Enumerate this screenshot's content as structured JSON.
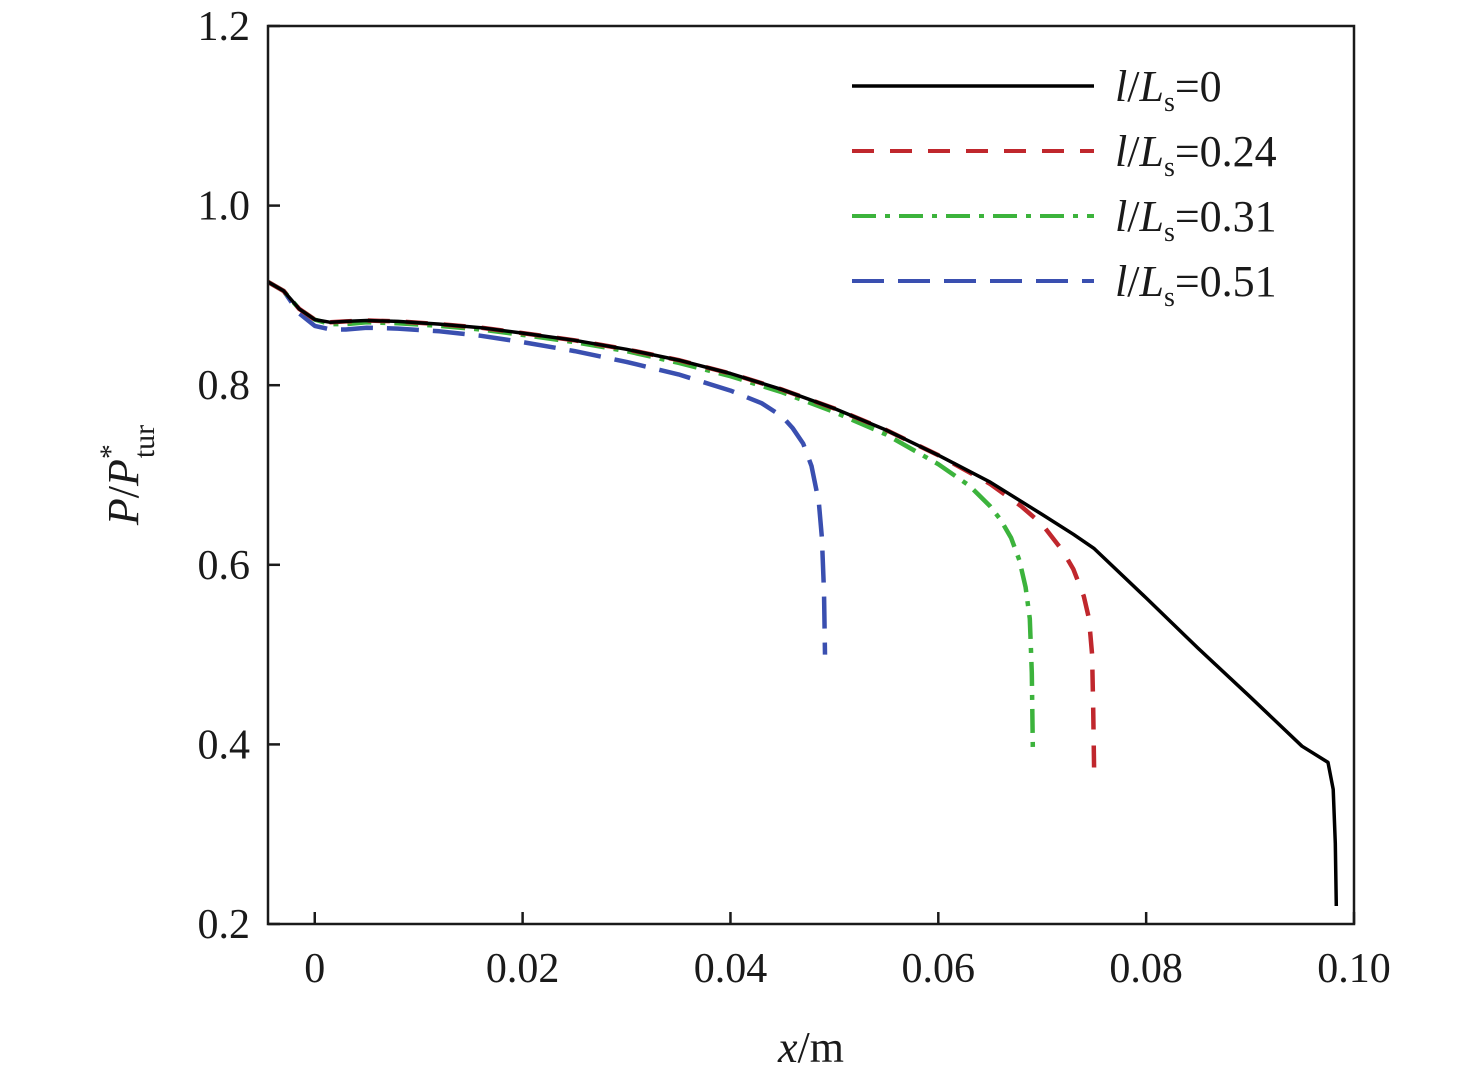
{
  "chart_data": {
    "type": "line",
    "xlabel": {
      "var": "x",
      "unit": "/m"
    },
    "ylabel": {
      "var1": "P",
      "slash": "/",
      "var2": "P",
      "sup": "*",
      "sub": "tur"
    },
    "xlim": [
      -0.0045,
      0.1
    ],
    "ylim": [
      0.2,
      1.2
    ],
    "xticks": [
      0,
      0.02,
      0.04,
      0.06,
      0.08,
      0.1
    ],
    "xtick_labels": [
      "0",
      "0.02",
      "0.04",
      "0.06",
      "0.08",
      "0.10"
    ],
    "yticks": [
      0.2,
      0.4,
      0.6,
      0.8,
      1.0,
      1.2
    ],
    "ytick_labels": [
      "0.2",
      "0.4",
      "0.6",
      "0.8",
      "1.0",
      "1.2"
    ],
    "grid": false,
    "legend_position": "top-right",
    "series": [
      {
        "name": "l/Ls=0",
        "legend": {
          "l": "l",
          "L": "L",
          "sub": "s",
          "eq": "=0"
        },
        "color": "#000000",
        "dash": "solid",
        "x": [
          -0.0045,
          -0.003,
          -0.0015,
          0.0,
          0.0015,
          0.003,
          0.005,
          0.008,
          0.012,
          0.016,
          0.02,
          0.025,
          0.03,
          0.035,
          0.04,
          0.045,
          0.05,
          0.055,
          0.06,
          0.065,
          0.07,
          0.073,
          0.075,
          0.08,
          0.085,
          0.09,
          0.095,
          0.0975,
          0.098,
          0.0982,
          0.0983
        ],
        "y": [
          0.915,
          0.905,
          0.885,
          0.873,
          0.87,
          0.871,
          0.872,
          0.871,
          0.868,
          0.864,
          0.858,
          0.85,
          0.84,
          0.828,
          0.813,
          0.795,
          0.774,
          0.75,
          0.722,
          0.692,
          0.656,
          0.634,
          0.618,
          0.563,
          0.507,
          0.453,
          0.398,
          0.38,
          0.35,
          0.29,
          0.22
        ]
      },
      {
        "name": "l/Ls=0.24",
        "legend": {
          "l": "l",
          "L": "L",
          "sub": "s",
          "eq": "=0.24"
        },
        "color": "#c0272d",
        "dash": "22 16",
        "x": [
          -0.0045,
          -0.003,
          -0.0015,
          0.0,
          0.0015,
          0.003,
          0.005,
          0.008,
          0.012,
          0.016,
          0.02,
          0.025,
          0.03,
          0.035,
          0.04,
          0.045,
          0.05,
          0.055,
          0.06,
          0.065,
          0.068,
          0.07,
          0.072,
          0.073,
          0.074,
          0.0745,
          0.0748,
          0.0749,
          0.075
        ],
        "y": [
          0.915,
          0.905,
          0.885,
          0.873,
          0.87,
          0.871,
          0.872,
          0.871,
          0.868,
          0.864,
          0.858,
          0.85,
          0.84,
          0.828,
          0.813,
          0.795,
          0.774,
          0.75,
          0.722,
          0.69,
          0.665,
          0.645,
          0.615,
          0.595,
          0.565,
          0.54,
          0.5,
          0.44,
          0.365
        ]
      },
      {
        "name": "l/Ls=0.31",
        "legend": {
          "l": "l",
          "L": "L",
          "sub": "s",
          "eq": "=0.31"
        },
        "color": "#3cb33c",
        "dash": "24 9 5 9",
        "x": [
          -0.0045,
          -0.003,
          -0.0015,
          0.0,
          0.0015,
          0.003,
          0.005,
          0.008,
          0.012,
          0.016,
          0.02,
          0.025,
          0.03,
          0.035,
          0.04,
          0.045,
          0.05,
          0.055,
          0.06,
          0.063,
          0.065,
          0.066,
          0.067,
          0.0678,
          0.0684,
          0.0688,
          0.069,
          0.0691
        ],
        "y": [
          0.915,
          0.905,
          0.885,
          0.873,
          0.868,
          0.868,
          0.87,
          0.869,
          0.866,
          0.862,
          0.856,
          0.848,
          0.838,
          0.825,
          0.81,
          0.792,
          0.77,
          0.745,
          0.712,
          0.688,
          0.665,
          0.65,
          0.63,
          0.605,
          0.575,
          0.54,
          0.48,
          0.39
        ]
      },
      {
        "name": "l/Ls=0.51",
        "legend": {
          "l": "l",
          "L": "L",
          "sub": "s",
          "eq": "=0.51"
        },
        "color": "#3a4fb0",
        "dash": "32 14",
        "x": [
          -0.0045,
          -0.003,
          -0.0015,
          0.0,
          0.0015,
          0.003,
          0.005,
          0.008,
          0.012,
          0.016,
          0.02,
          0.025,
          0.03,
          0.035,
          0.04,
          0.043,
          0.045,
          0.046,
          0.047,
          0.0478,
          0.0485,
          0.0488,
          0.049,
          0.0491
        ],
        "y": [
          0.915,
          0.905,
          0.88,
          0.866,
          0.862,
          0.862,
          0.864,
          0.863,
          0.86,
          0.855,
          0.848,
          0.838,
          0.826,
          0.812,
          0.794,
          0.78,
          0.765,
          0.752,
          0.735,
          0.71,
          0.67,
          0.63,
          0.57,
          0.5
        ]
      }
    ]
  }
}
